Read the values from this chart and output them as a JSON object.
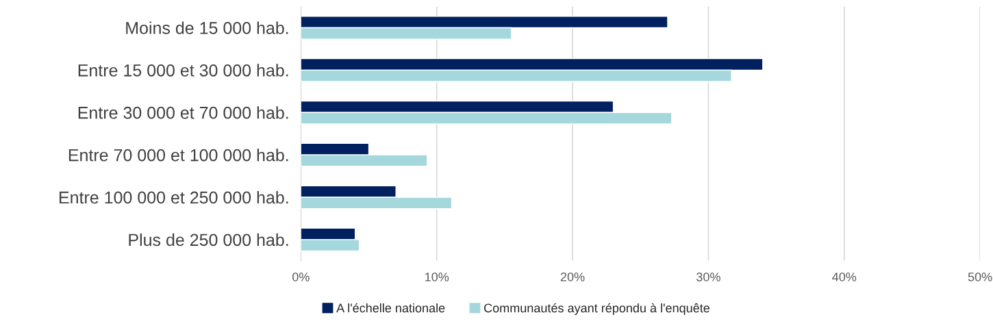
{
  "chart_data": {
    "type": "bar",
    "orientation": "horizontal",
    "categories": [
      "Moins de 15 000 hab.",
      "Entre 15 000 et 30 000 hab.",
      "Entre 30 000 et 70 000 hab.",
      "Entre 70 000 et 100 000 hab.",
      "Entre 100 000 et 250 000 hab.",
      "Plus de 250 000 hab."
    ],
    "series": [
      {
        "name": "A l'échelle nationale",
        "color": "#002060",
        "values": [
          27,
          34,
          23,
          5,
          7,
          4
        ]
      },
      {
        "name": "Communautés ayant répondu à l'enquête",
        "color": "#a5d8dd",
        "values": [
          15.5,
          31.7,
          27.3,
          9.3,
          11.1,
          4.3
        ]
      }
    ],
    "xlim": [
      0,
      50
    ],
    "xticks": [
      {
        "value": 0,
        "label": "0%"
      },
      {
        "value": 10,
        "label": "10%"
      },
      {
        "value": 20,
        "label": "20%"
      },
      {
        "value": 30,
        "label": "30%"
      },
      {
        "value": 40,
        "label": "40%"
      },
      {
        "value": 50,
        "label": "50%"
      }
    ],
    "grid": "x",
    "legend": "bottom"
  }
}
